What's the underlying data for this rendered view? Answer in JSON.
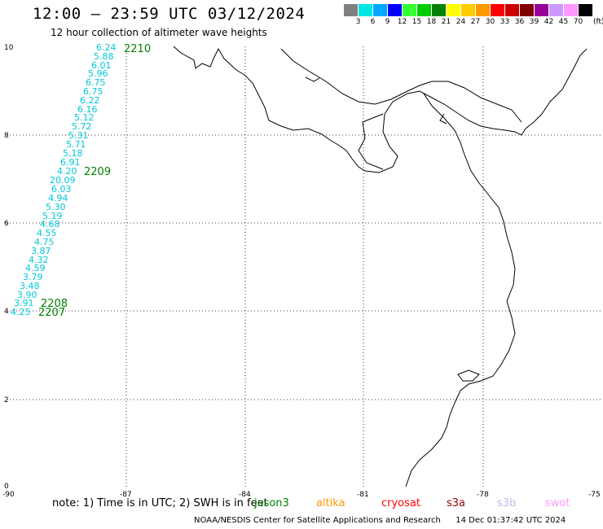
{
  "header": {
    "title": "12:00 – 23:59 UTC 03/12/2024",
    "subtitle": "12 hour collection of altimeter wave heights"
  },
  "legend": {
    "colors": [
      "#808080",
      "#00e5e5",
      "#00a8ff",
      "#0000ff",
      "#33ff33",
      "#00cc00",
      "#008000",
      "#ffff00",
      "#ffcc00",
      "#ff9900",
      "#ff0000",
      "#cc0000",
      "#800000",
      "#990099",
      "#cc99ff",
      "#ff99ff",
      "#000000"
    ],
    "labels": [
      "3",
      "6",
      "9",
      "12",
      "15",
      "18",
      "21",
      "24",
      "27",
      "30",
      "33",
      "36",
      "39",
      "42",
      "45",
      "70"
    ],
    "unit": "(ft)"
  },
  "axes": {
    "x_ticks": [
      "-90",
      "-87",
      "-84",
      "-81",
      "-78",
      "-75"
    ],
    "y_ticks": [
      "0",
      "2",
      "4",
      "6",
      "8",
      "10"
    ]
  },
  "track": {
    "color": "#00c8d8",
    "values": [
      "6.24",
      "5.88",
      "6.01",
      "5.96",
      "6.75",
      "6.75",
      "6.22",
      "6.16",
      "5.12",
      "5.72",
      "5.31",
      "5.71",
      "5.18",
      "6.91",
      "4.20",
      "20.09",
      "6.03",
      "4.94",
      "5.30",
      "5.19",
      "4.68",
      "4.55",
      "4.75",
      "3.87",
      "4.32",
      "4.59",
      "3.79",
      "3.48",
      "3.90",
      "3.91",
      "4.25"
    ]
  },
  "time_labels": [
    "2210",
    "2209",
    "2208",
    "2207"
  ],
  "note": {
    "text": "note:  1) Time is in UTC; 2) SWH is in feet",
    "jason_label": "jason3",
    "satellites": [
      {
        "name": "altika",
        "color": "#ff9900"
      },
      {
        "name": "cryosat",
        "color": "#ff0000"
      },
      {
        "name": "s3a",
        "color": "#990000"
      },
      {
        "name": "s3b",
        "color": "#c8b4f0"
      },
      {
        "name": "swot",
        "color": "#ff99ff"
      }
    ]
  },
  "credit": {
    "agency": "NOAA/NESDIS Center for Satellite Applications and Research",
    "timestamp": "14 Dec 01:37:42 UTC 2024"
  }
}
